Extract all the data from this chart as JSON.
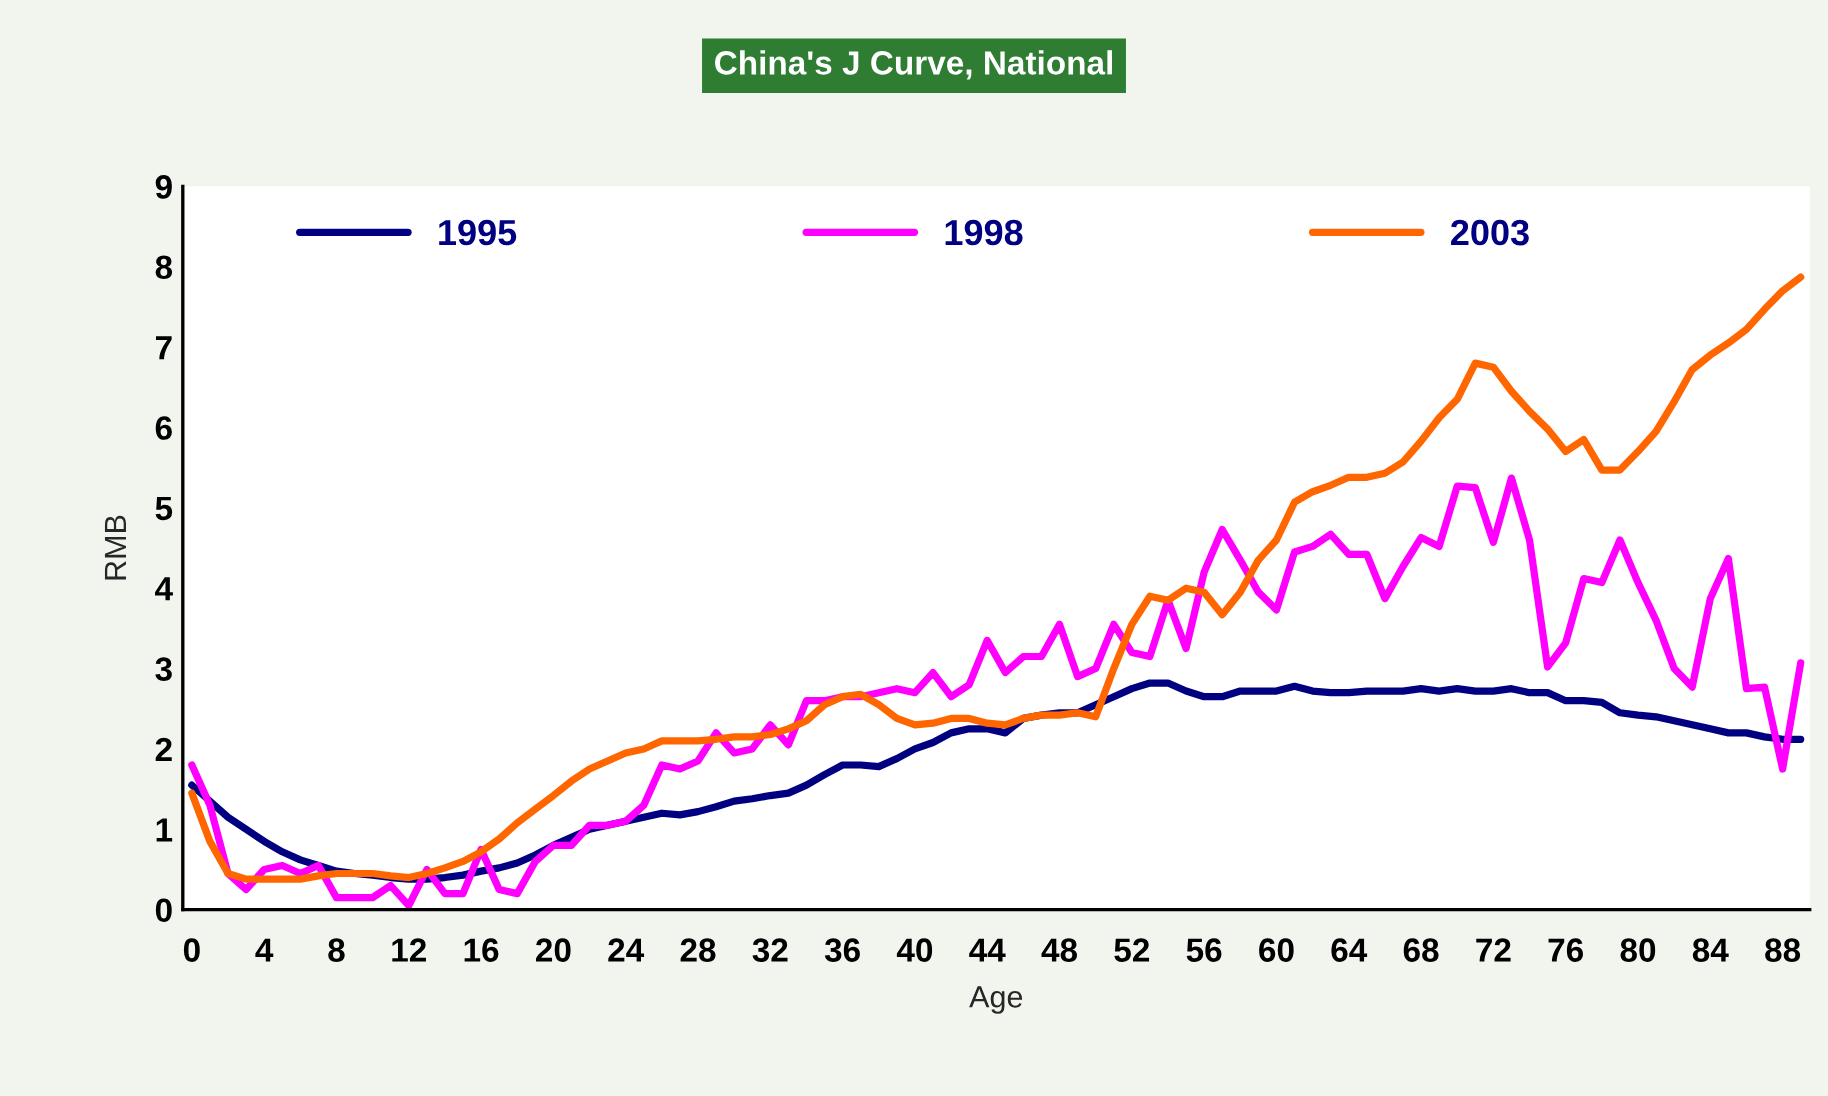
{
  "chart_data": {
    "type": "line",
    "title": "China's J Curve, National",
    "xlabel": "Age",
    "ylabel": "RMB",
    "categories": [
      "0",
      null,
      null,
      null,
      "4",
      null,
      null,
      null,
      "8",
      null,
      null,
      null,
      "12",
      null,
      null,
      null,
      "16",
      null,
      null,
      null,
      "20",
      null,
      null,
      null,
      "24",
      null,
      null,
      null,
      "28",
      null,
      null,
      null,
      "32",
      null,
      null,
      null,
      "36",
      null,
      null,
      null,
      "40",
      null,
      null,
      null,
      "44",
      null,
      null,
      null,
      "48",
      null,
      null,
      null,
      "52",
      null,
      null,
      null,
      "56",
      null,
      null,
      null,
      "60",
      null,
      null,
      null,
      "64",
      null,
      null,
      null,
      "68",
      null,
      null,
      null,
      "72",
      null,
      null,
      null,
      "76",
      null,
      null,
      null,
      "80",
      null,
      null,
      null,
      "84",
      null,
      null,
      null,
      "88",
      null
    ],
    "ylim": [
      0,
      9
    ],
    "yticks": [
      0,
      1,
      2,
      3,
      4,
      5,
      6,
      7,
      8,
      9
    ],
    "grid": false,
    "legend": "top",
    "marker": "none",
    "line_style": "solid",
    "series": [
      {
        "name": "1995",
        "color": "#000080",
        "values": [
          1.55,
          1.35,
          1.15,
          1.0,
          0.85,
          0.72,
          0.62,
          0.55,
          0.48,
          0.45,
          0.43,
          0.4,
          0.38,
          0.38,
          0.4,
          0.43,
          0.48,
          0.52,
          0.58,
          0.68,
          0.8,
          0.9,
          1.0,
          1.05,
          1.1,
          1.15,
          1.2,
          1.18,
          1.22,
          1.28,
          1.35,
          1.38,
          1.42,
          1.45,
          1.55,
          1.68,
          1.8,
          1.8,
          1.78,
          1.88,
          2.0,
          2.08,
          2.2,
          2.25,
          2.25,
          2.2,
          2.38,
          2.42,
          2.45,
          2.45,
          2.55,
          2.65,
          2.75,
          2.82,
          2.82,
          2.72,
          2.65,
          2.65,
          2.72,
          2.72,
          2.72,
          2.78,
          2.72,
          2.7,
          2.7,
          2.72,
          2.72,
          2.72,
          2.75,
          2.72,
          2.75,
          2.72,
          2.72,
          2.75,
          2.7,
          2.7,
          2.6,
          2.6,
          2.58,
          2.45,
          2.42,
          2.4,
          2.35,
          2.3,
          2.25,
          2.2,
          2.2,
          2.15,
          2.12,
          2.12
        ]
      },
      {
        "name": "1998",
        "color": "#ff00ff",
        "values": [
          1.8,
          1.3,
          0.45,
          0.25,
          0.5,
          0.55,
          0.45,
          0.55,
          0.15,
          0.15,
          0.15,
          0.3,
          0.05,
          0.5,
          0.2,
          0.2,
          0.75,
          0.25,
          0.2,
          0.6,
          0.8,
          0.8,
          1.05,
          1.05,
          1.1,
          1.3,
          1.8,
          1.75,
          1.85,
          2.2,
          1.95,
          2.0,
          2.3,
          2.05,
          2.6,
          2.6,
          2.65,
          2.65,
          2.7,
          2.75,
          2.7,
          2.95,
          2.65,
          2.8,
          3.35,
          2.95,
          3.15,
          3.15,
          3.55,
          2.9,
          3.0,
          3.55,
          3.2,
          3.15,
          3.85,
          3.25,
          4.2,
          4.73,
          4.35,
          3.95,
          3.73,
          4.45,
          4.52,
          4.67,
          4.42,
          4.42,
          3.87,
          4.27,
          4.63,
          4.52,
          5.27,
          5.25,
          4.57,
          5.37,
          4.6,
          3.02,
          3.32,
          4.12,
          4.07,
          4.6,
          4.07,
          3.6,
          3.0,
          2.77,
          3.87,
          4.37,
          2.75,
          2.77,
          1.75,
          3.07
        ]
      },
      {
        "name": "2003",
        "color": "#ff6600",
        "values": [
          1.45,
          0.85,
          0.45,
          0.38,
          0.38,
          0.38,
          0.38,
          0.42,
          0.45,
          0.45,
          0.45,
          0.42,
          0.4,
          0.45,
          0.52,
          0.6,
          0.72,
          0.88,
          1.08,
          1.25,
          1.42,
          1.6,
          1.75,
          1.85,
          1.95,
          2.0,
          2.1,
          2.1,
          2.1,
          2.12,
          2.15,
          2.15,
          2.18,
          2.25,
          2.35,
          2.55,
          2.65,
          2.68,
          2.55,
          2.38,
          2.3,
          2.32,
          2.38,
          2.38,
          2.32,
          2.3,
          2.38,
          2.42,
          2.42,
          2.45,
          2.4,
          3.0,
          3.55,
          3.9,
          3.85,
          4.0,
          3.95,
          3.67,
          3.95,
          4.35,
          4.6,
          5.07,
          5.2,
          5.28,
          5.38,
          5.38,
          5.43,
          5.57,
          5.83,
          6.12,
          6.35,
          6.8,
          6.75,
          6.45,
          6.2,
          5.98,
          5.7,
          5.85,
          5.47,
          5.47,
          5.7,
          5.95,
          6.32,
          6.72,
          6.9,
          7.05,
          7.22,
          7.47,
          7.7,
          7.87
        ]
      }
    ]
  }
}
